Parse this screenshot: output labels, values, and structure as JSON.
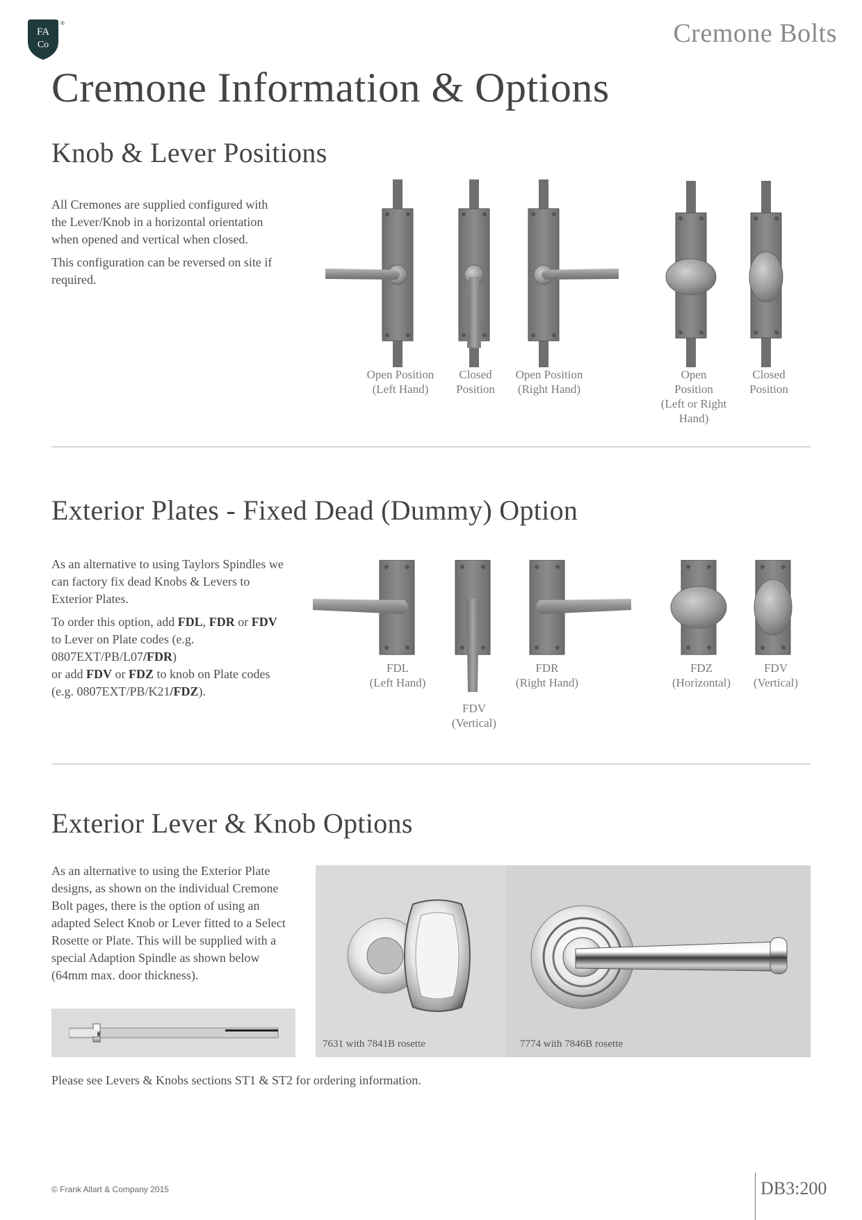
{
  "header": {
    "logo_top": "FA",
    "logo_bottom": "Co",
    "logo_mark": "®",
    "section_label": "Cremone Bolts",
    "page_title": "Cremone Information & Options"
  },
  "colors": {
    "metal_dark": "#7b7b7b",
    "metal_mid": "#9a9a9a",
    "metal_light": "#c2c2c2",
    "logo_bg": "#1f3a3a",
    "rule": "#b5b5b5"
  },
  "section1": {
    "heading": "Knob & Lever Positions",
    "para1": "All Cremones are supplied configured with the Lever/Knob in a horizontal orientation when opened and vertical when closed.",
    "para2": "This configuration can be reversed on site if required.",
    "captions": [
      {
        "line1": "Open Position",
        "line2": "(Left Hand)"
      },
      {
        "line1": "Closed",
        "line2": "Position"
      },
      {
        "line1": "Open Position",
        "line2": "(Right Hand)"
      },
      {
        "line1": "Open",
        "line2": "Position",
        "line3": "(Left or Right",
        "line4": "Hand)"
      },
      {
        "line1": "Closed",
        "line2": "Position"
      }
    ]
  },
  "section2": {
    "heading": "Exterior Plates - Fixed Dead (Dummy) Option",
    "para1": "As an alternative to using Taylors Spindles we can factory fix dead Knobs & Levers to Exterior Plates.",
    "p2_a": "To order this option, add ",
    "p2_b": "FDL",
    "p2_c": ", ",
    "p2_d": "FDR",
    "p2_e": " or ",
    "p2_f": "FDV",
    "p2_g": " to Lever on Plate codes (e.g. 0807EXT/PB/L07",
    "p2_h": "/FDR",
    "p2_i": ")",
    "p3_a": " or add ",
    "p3_b": "FDV",
    "p3_c": " or ",
    "p3_d": "FDZ",
    "p3_e": " to knob on Plate codes (e.g. 0807EXT/PB/K21",
    "p3_f": "/FDZ",
    "p3_g": ").",
    "captions": [
      {
        "line1": "FDL",
        "line2": "(Left Hand)"
      },
      {
        "line1": "FDV",
        "line2": "(Vertical)"
      },
      {
        "line1": "FDR",
        "line2": "(Right Hand)"
      },
      {
        "line1": "FDZ",
        "line2": "(Horizontal)"
      },
      {
        "line1": "FDV",
        "line2": "(Vertical)"
      }
    ]
  },
  "section3": {
    "heading": "Exterior Lever & Knob Options",
    "para1": "As an alternative to using the Exterior Plate designs, as shown on the individual Cremone Bolt pages, there is the option of using an adapted Select Knob or Lever fitted to a Select Rosette or Plate. This will be supplied with a special Adaption Spindle as shown below (64mm max. door thickness).",
    "photo1_caption": "7631 with 7841B rosette",
    "photo2_caption": "7774 with 7846B rosette",
    "note": "Please see Levers & Knobs sections ST1 & ST2 for ordering information."
  },
  "footer": {
    "copyright": "© Frank Allart & Company 2015",
    "page_code": "DB3:200"
  }
}
